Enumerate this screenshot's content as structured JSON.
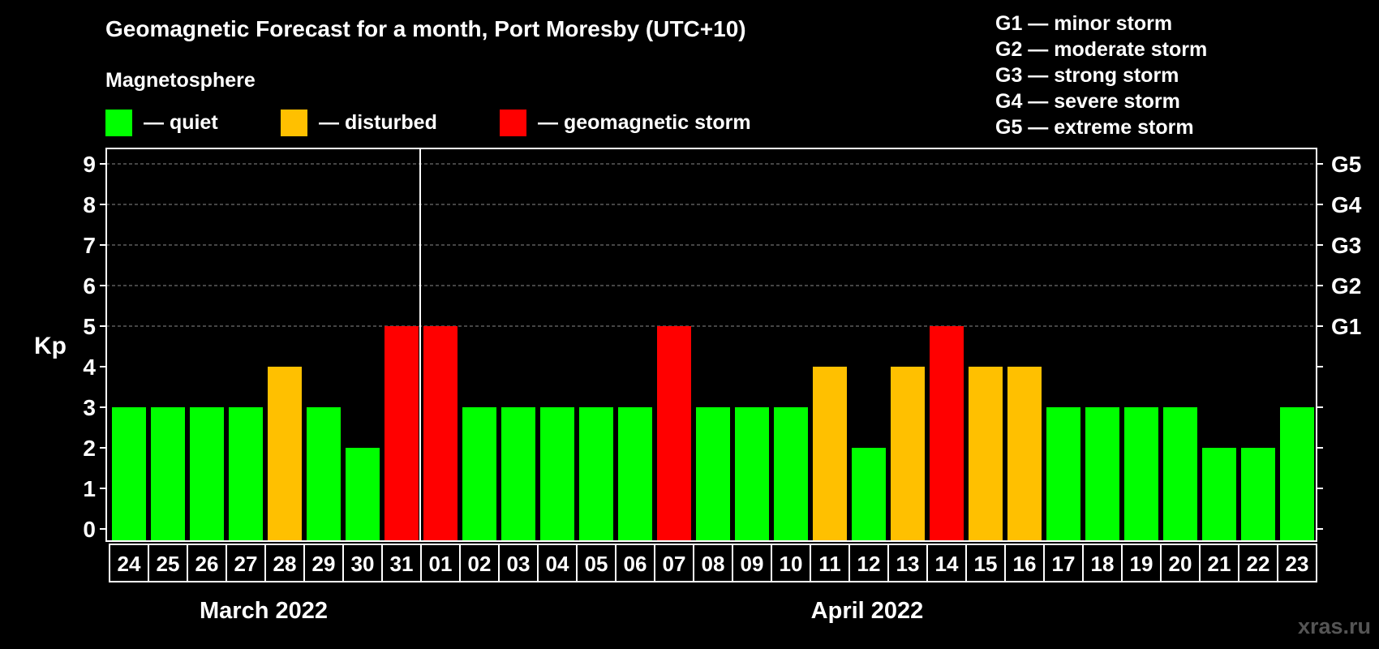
{
  "title": "Geomagnetic Forecast for a month, Port Moresby (UTC+10)",
  "magnetosphere_title": "Magnetosphere",
  "legend": [
    {
      "color": "#00ff00",
      "label": "— quiet"
    },
    {
      "color": "#ffc000",
      "label": "— disturbed"
    },
    {
      "color": "#ff0000",
      "label": "— geomagnetic storm"
    }
  ],
  "g_legend": [
    "G1 — minor storm",
    "G2 — moderate storm",
    "G3 — strong storm",
    "G4 — severe storm",
    "G5 — extreme storm"
  ],
  "watermark": "xras.ru",
  "chart_data": {
    "type": "bar",
    "title": "Geomagnetic Forecast for a month, Port Moresby (UTC+10)",
    "ylabel": "Kp",
    "ylim": [
      0,
      9
    ],
    "y_ticks": [
      "0",
      "1",
      "2",
      "3",
      "4",
      "5",
      "6",
      "7",
      "8",
      "9"
    ],
    "right_ticks": [
      {
        "value": 5,
        "label": "G1"
      },
      {
        "value": 6,
        "label": "G2"
      },
      {
        "value": 7,
        "label": "G3"
      },
      {
        "value": 8,
        "label": "G4"
      },
      {
        "value": 9,
        "label": "G5"
      }
    ],
    "categories": [
      "24",
      "25",
      "26",
      "27",
      "28",
      "29",
      "30",
      "31",
      "01",
      "02",
      "03",
      "04",
      "05",
      "06",
      "07",
      "08",
      "09",
      "10",
      "11",
      "12",
      "13",
      "14",
      "15",
      "16",
      "17",
      "18",
      "19",
      "20",
      "21",
      "22",
      "23"
    ],
    "values": [
      3,
      3,
      3,
      3,
      4,
      3,
      2,
      5,
      5,
      3,
      3,
      3,
      3,
      3,
      5,
      3,
      3,
      3,
      4,
      2,
      4,
      5,
      4,
      4,
      3,
      3,
      3,
      3,
      2,
      2,
      3
    ],
    "colors": {
      "quiet": "#00ff00",
      "disturbed": "#ffc000",
      "storm": "#ff0000"
    },
    "months": [
      {
        "label": "March 2022",
        "start_index": 0,
        "end_index": 7
      },
      {
        "label": "April 2022",
        "start_index": 8,
        "end_index": 30
      }
    ],
    "month_divider_after_index": 7
  }
}
